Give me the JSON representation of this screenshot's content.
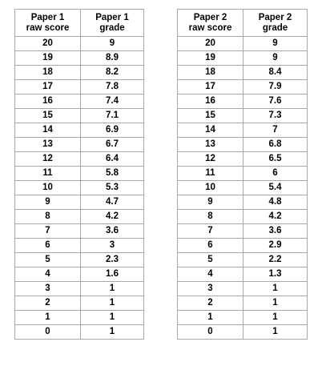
{
  "tables": [
    {
      "headers": [
        "Paper 1\nraw score",
        "Paper 1\ngrade"
      ],
      "rows": [
        [
          "20",
          "9"
        ],
        [
          "19",
          "8.9"
        ],
        [
          "18",
          "8.2"
        ],
        [
          "17",
          "7.8"
        ],
        [
          "16",
          "7.4"
        ],
        [
          "15",
          "7.1"
        ],
        [
          "14",
          "6.9"
        ],
        [
          "13",
          "6.7"
        ],
        [
          "12",
          "6.4"
        ],
        [
          "11",
          "5.8"
        ],
        [
          "10",
          "5.3"
        ],
        [
          "9",
          "4.7"
        ],
        [
          "8",
          "4.2"
        ],
        [
          "7",
          "3.6"
        ],
        [
          "6",
          "3"
        ],
        [
          "5",
          "2.3"
        ],
        [
          "4",
          "1.6"
        ],
        [
          "3",
          "1"
        ],
        [
          "2",
          "1"
        ],
        [
          "1",
          "1"
        ],
        [
          "0",
          "1"
        ]
      ]
    },
    {
      "headers": [
        "Paper 2\nraw score",
        "Paper 2\ngrade"
      ],
      "rows": [
        [
          "20",
          "9"
        ],
        [
          "19",
          "9"
        ],
        [
          "18",
          "8.4"
        ],
        [
          "17",
          "7.9"
        ],
        [
          "16",
          "7.6"
        ],
        [
          "15",
          "7.3"
        ],
        [
          "14",
          "7"
        ],
        [
          "13",
          "6.8"
        ],
        [
          "12",
          "6.5"
        ],
        [
          "11",
          "6"
        ],
        [
          "10",
          "5.4"
        ],
        [
          "9",
          "4.8"
        ],
        [
          "8",
          "4.2"
        ],
        [
          "7",
          "3.6"
        ],
        [
          "6",
          "2.9"
        ],
        [
          "5",
          "2.2"
        ],
        [
          "4",
          "1.3"
        ],
        [
          "3",
          "1"
        ],
        [
          "2",
          "1"
        ],
        [
          "1",
          "1"
        ],
        [
          "0",
          "1"
        ]
      ]
    }
  ]
}
